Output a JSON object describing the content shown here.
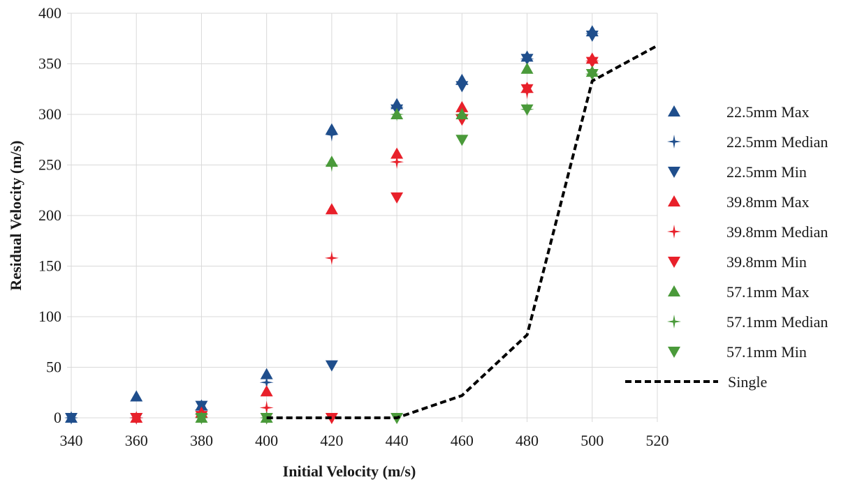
{
  "chart_data": {
    "type": "scatter",
    "xlabel": "Initial Velocity (m/s)",
    "ylabel": "Residual Velocity (m/s)",
    "xlim": [
      340,
      520
    ],
    "ylim": [
      0,
      400
    ],
    "x_ticks": [
      340,
      360,
      380,
      400,
      420,
      440,
      460,
      480,
      500,
      520
    ],
    "y_ticks": [
      0,
      50,
      100,
      150,
      200,
      250,
      300,
      350,
      400
    ],
    "grid": true,
    "legend_position": "right",
    "series": [
      {
        "name": "22.5mm Max",
        "marker": "triangle-up",
        "color": "#1f4e8c",
        "x": [
          340,
          360,
          380,
          400,
          420,
          440,
          460,
          480,
          500
        ],
        "y": [
          0,
          21,
          12,
          43,
          285,
          310,
          334,
          357,
          382
        ]
      },
      {
        "name": "22.5mm Median",
        "marker": "star",
        "color": "#1f4e8c",
        "x": [
          340,
          360,
          380,
          400,
          420,
          440,
          460,
          480,
          500
        ],
        "y": [
          0,
          0,
          8,
          35,
          280,
          307,
          330,
          355,
          380
        ]
      },
      {
        "name": "22.5mm Min",
        "marker": "triangle-down",
        "color": "#1f4e8c",
        "x": [
          340,
          360,
          380,
          400,
          420,
          440,
          460,
          480,
          500
        ],
        "y": [
          0,
          0,
          12,
          0,
          52,
          305,
          328,
          355,
          378
        ]
      },
      {
        "name": "39.8mm Max",
        "marker": "triangle-up",
        "color": "#e8202a",
        "x": [
          360,
          380,
          400,
          420,
          440,
          460,
          480,
          500
        ],
        "y": [
          0,
          5,
          26,
          206,
          261,
          307,
          326,
          355
        ]
      },
      {
        "name": "39.8mm Median",
        "marker": "star",
        "color": "#e8202a",
        "x": [
          360,
          380,
          400,
          420,
          440,
          460,
          480,
          500
        ],
        "y": [
          0,
          3,
          10,
          158,
          253,
          300,
          322,
          353
        ]
      },
      {
        "name": "39.8mm Min",
        "marker": "triangle-down",
        "color": "#e8202a",
        "x": [
          360,
          380,
          400,
          420,
          440,
          460,
          480,
          500
        ],
        "y": [
          0,
          2,
          0,
          0,
          218,
          295,
          325,
          352
        ]
      },
      {
        "name": "57.1mm Max",
        "marker": "triangle-up",
        "color": "#4a9a3a",
        "x": [
          380,
          400,
          420,
          440,
          460,
          480,
          500
        ],
        "y": [
          0,
          0,
          253,
          300,
          300,
          345,
          342
        ]
      },
      {
        "name": "57.1mm Median",
        "marker": "star",
        "color": "#4a9a3a",
        "x": [
          380,
          400,
          420,
          440,
          460,
          480,
          500
        ],
        "y": [
          0,
          0,
          250,
          300,
          300,
          305,
          340
        ]
      },
      {
        "name": "57.1mm Min",
        "marker": "triangle-down",
        "color": "#4a9a3a",
        "x": [
          380,
          400,
          440,
          460,
          480,
          500
        ],
        "y": [
          0,
          0,
          0,
          275,
          305,
          340
        ]
      },
      {
        "name": "Single",
        "marker": "dashed-line",
        "color": "#000000",
        "x": [
          400,
          420,
          440,
          460,
          480,
          500,
          520
        ],
        "y": [
          0,
          0,
          0,
          22,
          82,
          333,
          368
        ]
      }
    ]
  }
}
